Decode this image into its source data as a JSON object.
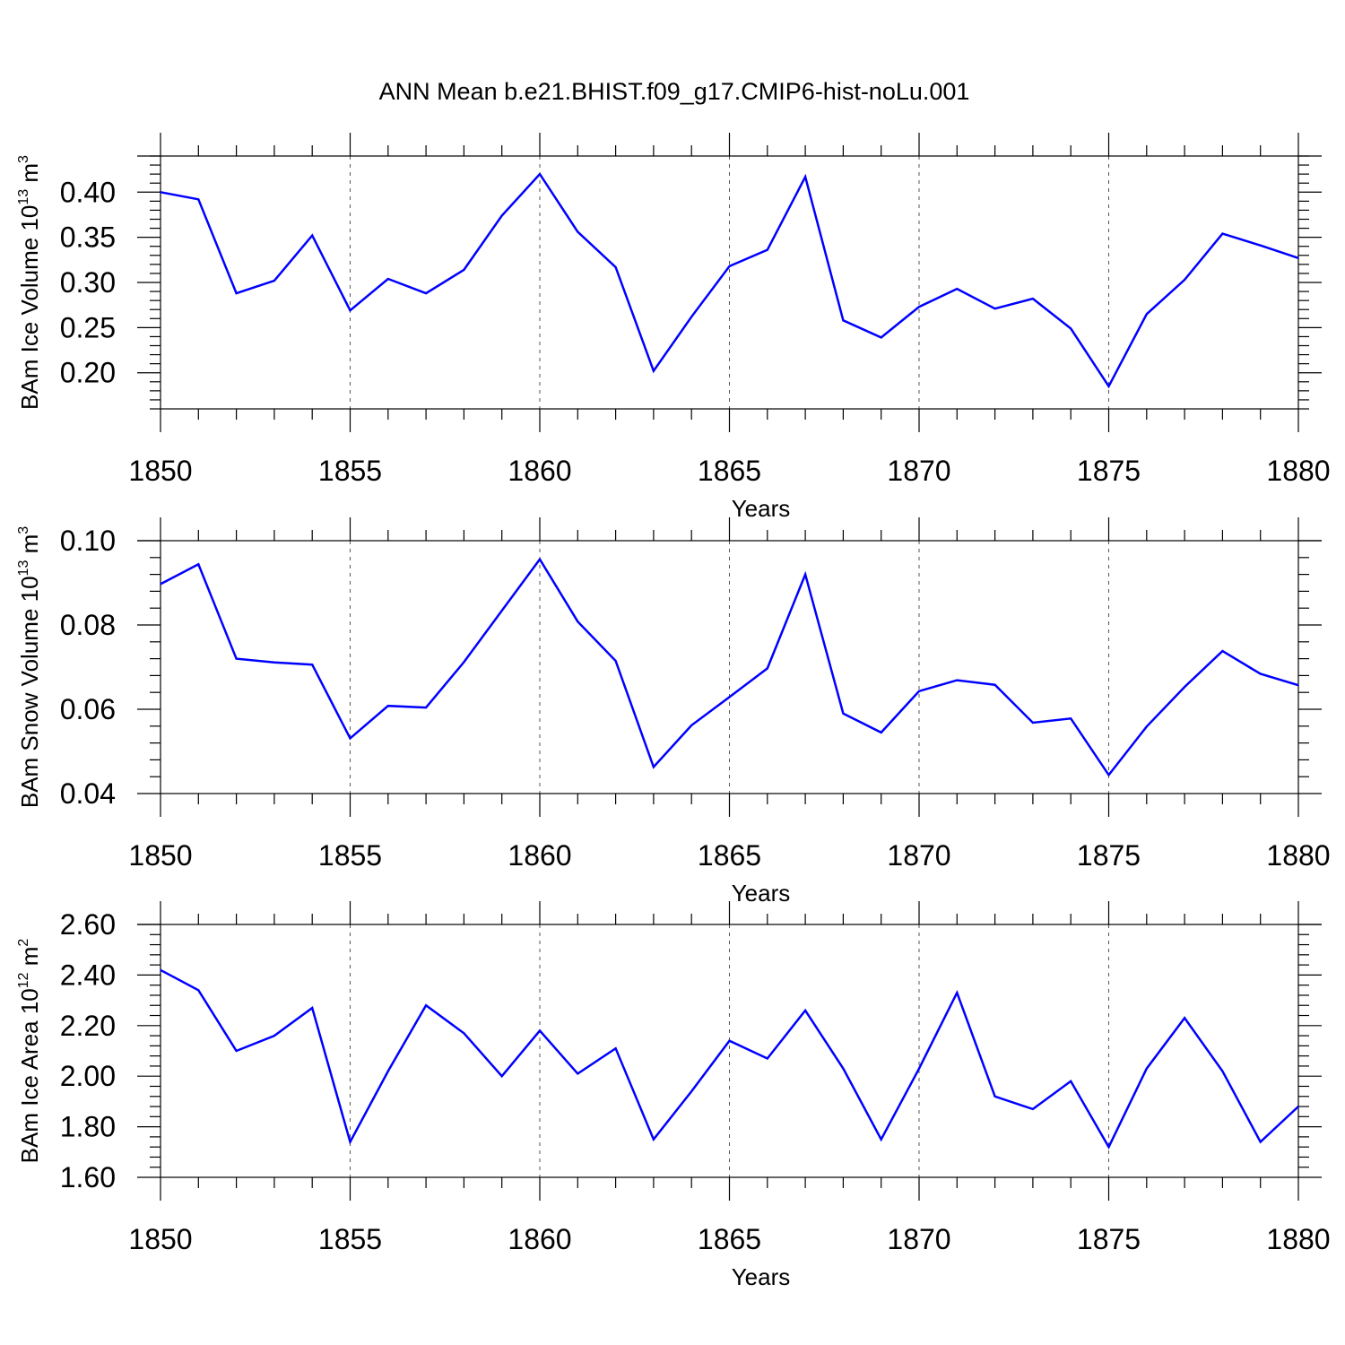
{
  "chart_data": {
    "type": "line",
    "title": "ANN Mean b.e21.BHIST.f09_g17.CMIP6-hist-noLu.001",
    "series_color": "#0000ff",
    "x": [
      1850,
      1851,
      1852,
      1853,
      1854,
      1855,
      1856,
      1857,
      1858,
      1859,
      1860,
      1861,
      1862,
      1863,
      1864,
      1865,
      1866,
      1867,
      1868,
      1869,
      1870,
      1871,
      1872,
      1873,
      1874,
      1875,
      1876,
      1877,
      1878,
      1879,
      1880
    ],
    "xlim": [
      1850,
      1880
    ],
    "xticks": [
      "1850",
      "1855",
      "1860",
      "1865",
      "1870",
      "1875",
      "1880"
    ],
    "xgrid": [
      1855,
      1860,
      1865,
      1870,
      1875
    ],
    "panels": [
      {
        "id": "ice-volume",
        "xlabel": "Years",
        "ylabel_main": "BAm Ice Volume 10",
        "ylabel_exp": "13",
        "ylabel_unit": " m",
        "ylabel_unit_exp": "3",
        "ylim": [
          0.16,
          0.44
        ],
        "yticks": [
          "0.20",
          "0.25",
          "0.30",
          "0.35",
          "0.40"
        ],
        "series": [
          {
            "name": "BAm Ice Volume",
            "values": [
              0.4,
              0.392,
              0.288,
              0.302,
              0.352,
              0.269,
              0.304,
              0.288,
              0.314,
              0.374,
              0.42,
              0.356,
              0.317,
              0.202,
              0.262,
              0.318,
              0.336,
              0.417,
              0.258,
              0.239,
              0.273,
              0.293,
              0.271,
              0.282,
              0.249,
              0.185,
              0.265,
              0.303,
              0.354,
              0.341,
              0.327
            ]
          }
        ]
      },
      {
        "id": "snow-volume",
        "xlabel": "Years",
        "ylabel_main": "BAm Snow Volume 10",
        "ylabel_exp": "13",
        "ylabel_unit": " m",
        "ylabel_unit_exp": "3",
        "ylim": [
          0.04,
          0.1
        ],
        "yticks": [
          "0.04",
          "0.06",
          "0.08",
          "0.10"
        ],
        "series": [
          {
            "name": "BAm Snow Volume",
            "values": [
              0.0897,
              0.0944,
              0.072,
              0.0711,
              0.0706,
              0.0531,
              0.0608,
              0.0604,
              0.0712,
              0.0834,
              0.0956,
              0.0808,
              0.0715,
              0.0463,
              0.0562,
              0.0629,
              0.0697,
              0.092,
              0.059,
              0.0545,
              0.0643,
              0.0669,
              0.0658,
              0.0568,
              0.0578,
              0.0444,
              0.0559,
              0.0653,
              0.0738,
              0.0684,
              0.0657
            ]
          }
        ]
      },
      {
        "id": "ice-area",
        "xlabel": "Years",
        "ylabel_main": "BAm Ice Area 10",
        "ylabel_exp": "12",
        "ylabel_unit": " m",
        "ylabel_unit_exp": "2",
        "ylim": [
          1.6,
          2.6
        ],
        "yticks": [
          "1.60",
          "1.80",
          "2.00",
          "2.20",
          "2.40",
          "2.60"
        ],
        "series": [
          {
            "name": "BAm Ice Area",
            "values": [
              2.42,
              2.34,
              2.1,
              2.16,
              2.27,
              1.74,
              2.02,
              2.28,
              2.17,
              2.0,
              2.18,
              2.01,
              2.11,
              1.75,
              1.94,
              2.14,
              2.07,
              2.26,
              2.03,
              1.75,
              2.03,
              2.33,
              1.92,
              1.87,
              1.98,
              1.72,
              2.03,
              2.23,
              2.02,
              1.74,
              1.88
            ]
          }
        ]
      }
    ]
  }
}
